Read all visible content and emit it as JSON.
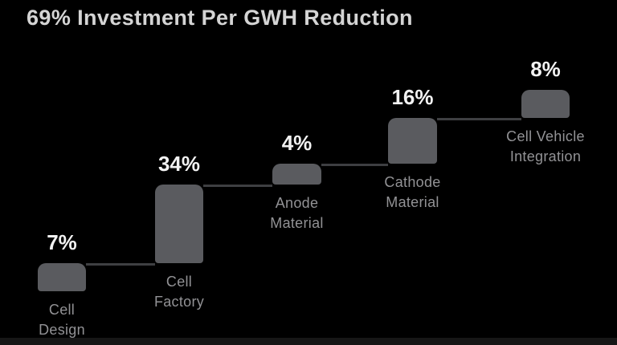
{
  "title": "69% Investment Per GWH Reduction",
  "colors": {
    "background": "#000000",
    "bar": "#5a5b5f",
    "connector": "#3e3f42",
    "percent_text": "#f2f2f2",
    "category_text": "#929295",
    "title_text": "#d4d4d4",
    "bottom_strip": "#161616"
  },
  "chart_data": {
    "type": "bar",
    "subtype": "stepped-waterfall",
    "title": "69% Investment Per GWH Reduction",
    "total_label": "69%",
    "unit": "%",
    "categories": [
      "Cell Design",
      "Cell Factory",
      "Anode Material",
      "Cathode Material",
      "Cell Vehicle Integration"
    ],
    "values": [
      7,
      34,
      4,
      16,
      8
    ],
    "legend": "none",
    "grid": false,
    "axes": "none",
    "steps": [
      {
        "label": "Cell Design",
        "lines": [
          "Cell",
          "Design"
        ],
        "value": 7,
        "value_label": "7%"
      },
      {
        "label": "Cell Factory",
        "lines": [
          "Cell",
          "Factory"
        ],
        "value": 34,
        "value_label": "34%"
      },
      {
        "label": "Anode Material",
        "lines": [
          "Anode",
          "Material"
        ],
        "value": 4,
        "value_label": "4%"
      },
      {
        "label": "Cathode Material",
        "lines": [
          "Cathode",
          "Material"
        ],
        "value": 16,
        "value_label": "16%"
      },
      {
        "label": "Cell Vehicle Integration",
        "lines": [
          "Cell Vehicle",
          "Integration"
        ],
        "value": 8,
        "value_label": "8%"
      }
    ]
  }
}
